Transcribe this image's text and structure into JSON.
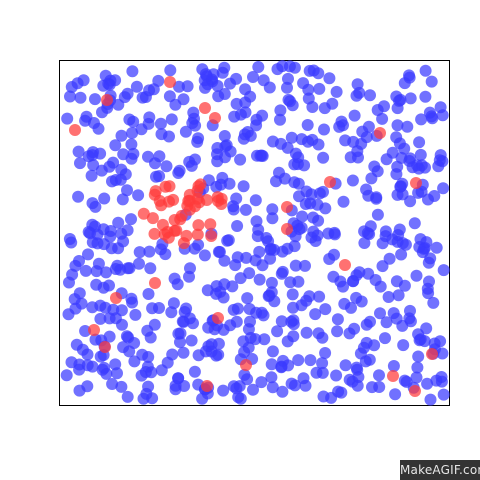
{
  "simulation": {
    "particle_color_blue": "#3a3aff",
    "particle_color_red": "#ff3a3a",
    "particle_opacity": 0.72,
    "frame_color": "#000000",
    "background": "#ffffff"
  },
  "watermark": {
    "text": "MakeAGIF.com"
  }
}
